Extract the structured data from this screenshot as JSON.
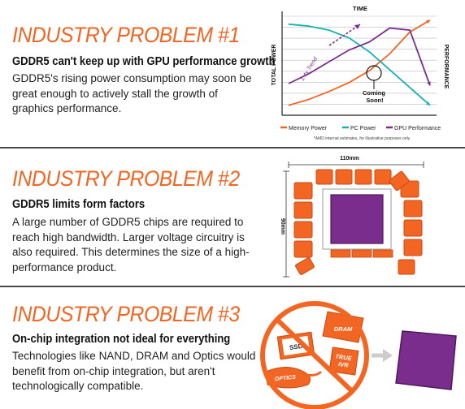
{
  "sections": [
    {
      "heading": "INDUSTRY PROBLEM #1",
      "subhead": "GDDR5 can't keep up with GPU performance growth",
      "body": "GDDR5's rising power consumption may soon be great enough to actively stall the growth of graphics performance."
    },
    {
      "heading": "INDUSTRY PROBLEM #2",
      "subhead": "GDDR5 limits form factors",
      "body": "A large number of GDDR5 chips are required to reach high bandwidth. Larger voltage circuitry is also required. This determines the size of a high-performance product."
    },
    {
      "heading": "INDUSTRY PROBLEM #3",
      "subhead": "On-chip integration not ideal for everything",
      "body": "Technologies like NAND, DRAM and Optics would benefit from on-chip integration, but aren't technologically compatible."
    }
  ],
  "chart_data": {
    "type": "line",
    "title": "TIME",
    "ylabel_left": "TOTAL POWER",
    "ylabel_right": "PERFORMANCE",
    "annotations": [
      "1.4x Trend",
      "Coming Soon!"
    ],
    "footnote": "*AMD internal estimates, for illustrative purposes only",
    "series": [
      {
        "name": "Memory Power",
        "color": "#f26522",
        "values": [
          10,
          16,
          24,
          33,
          45,
          62,
          84,
          96
        ]
      },
      {
        "name": "PC Power",
        "color": "#1ab0b0",
        "values": [
          92,
          90,
          86,
          78,
          64,
          46,
          28,
          10
        ]
      },
      {
        "name": "GPU Performance",
        "color": "#7b2d8e",
        "values": [
          32,
          42,
          54,
          66,
          74,
          88,
          86,
          30
        ]
      }
    ],
    "grid": true,
    "legend": "bottom"
  },
  "diagram2": {
    "width_label": "110mm",
    "height_label": "90mm"
  },
  "diagram3": {
    "labels": [
      "SSD",
      "DRAM",
      "TRUE IVR",
      "OPTICS"
    ]
  },
  "colors": {
    "accent": "#f26522",
    "teal": "#1ab0b0",
    "purple": "#7b2d8e"
  }
}
